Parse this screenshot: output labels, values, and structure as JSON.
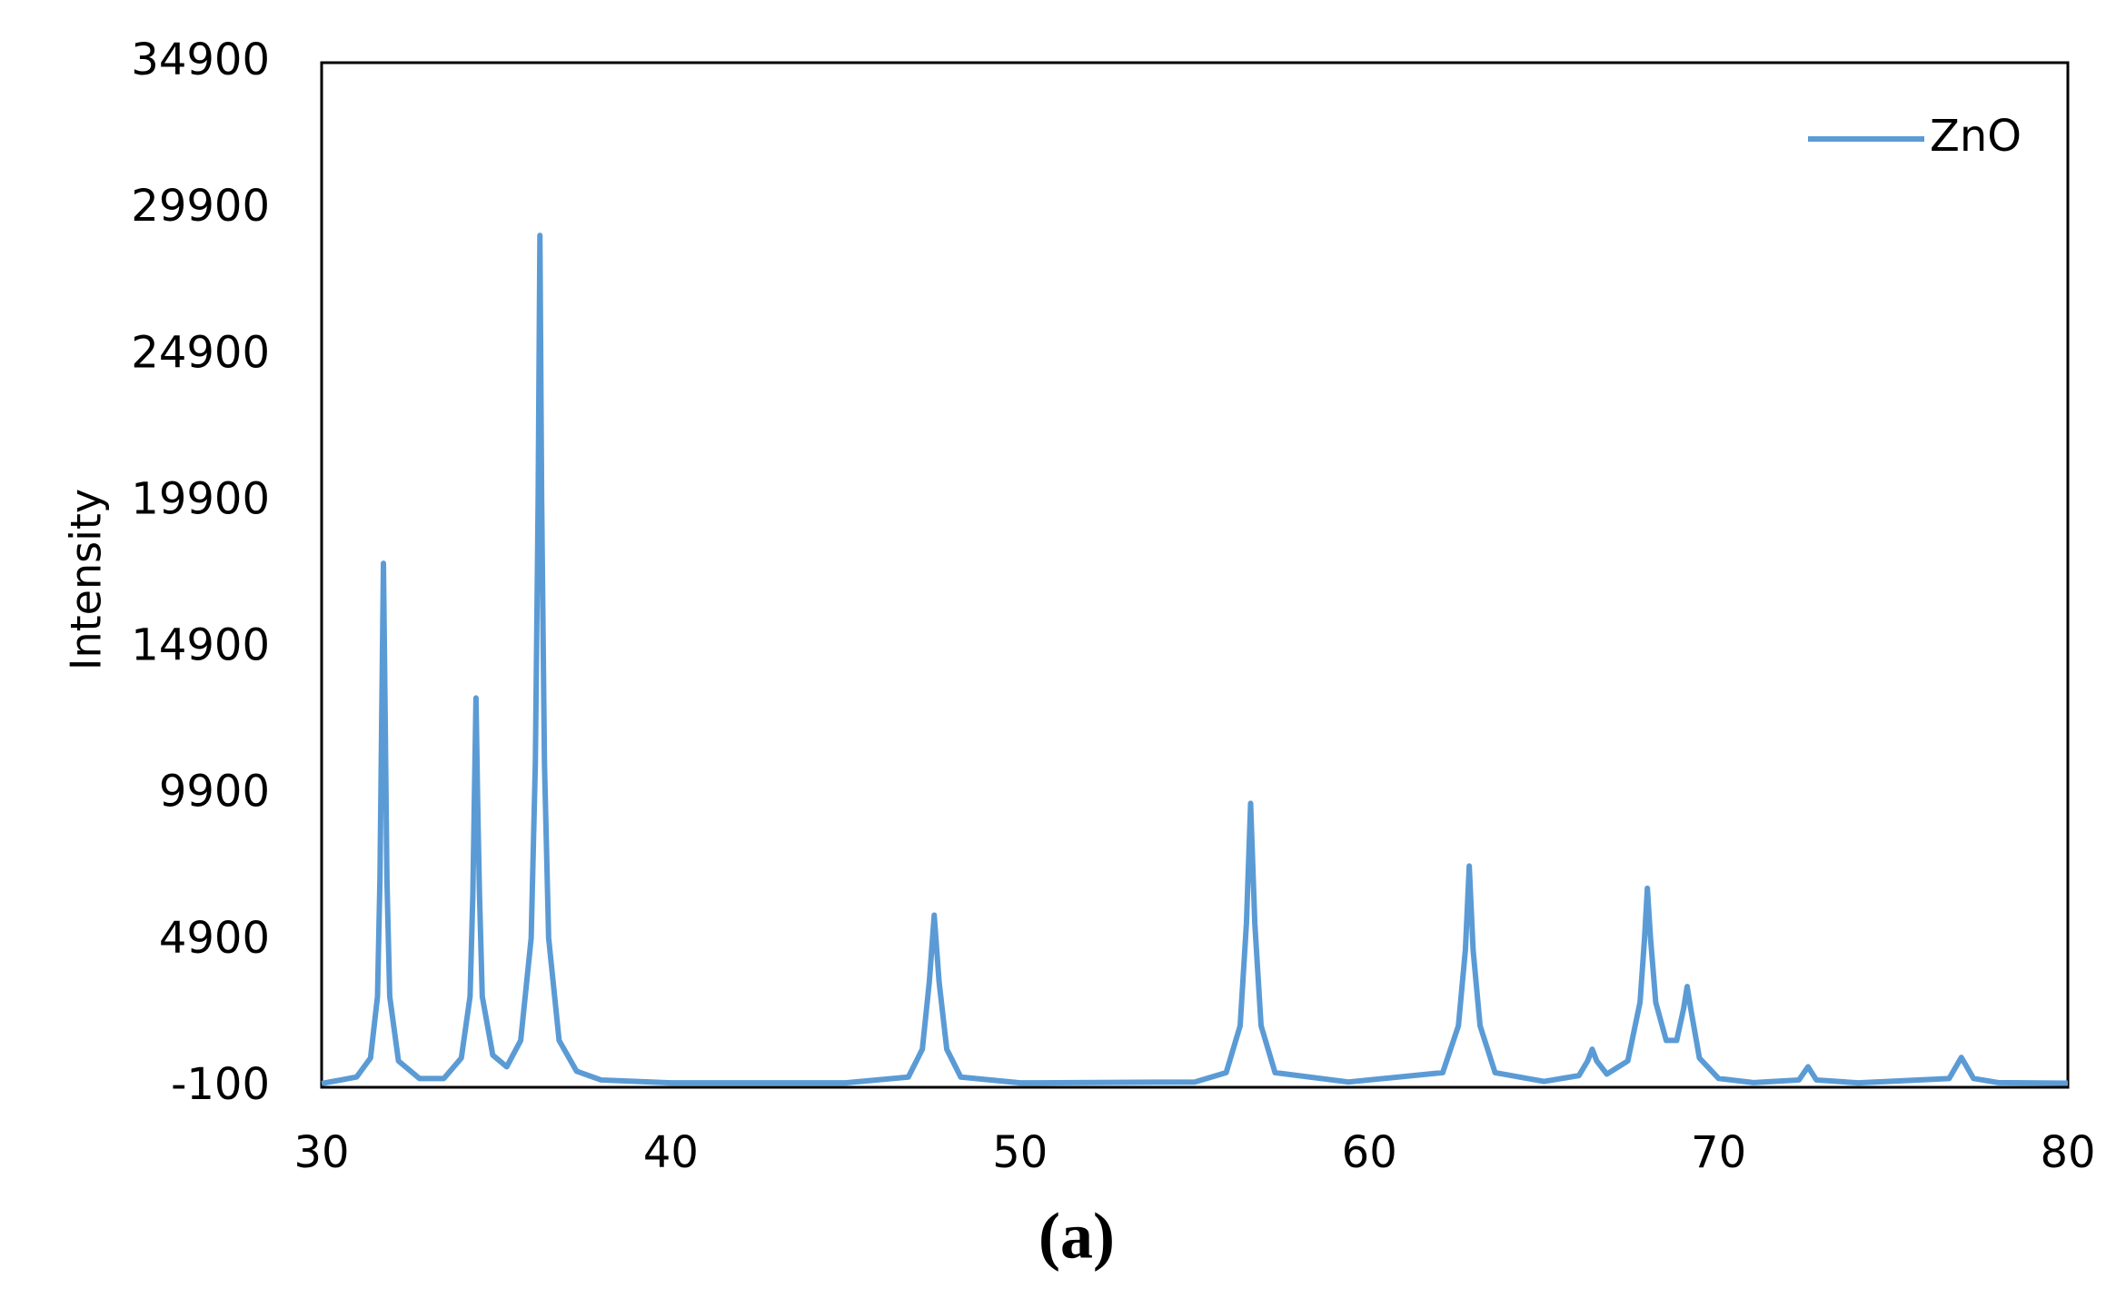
{
  "chart_data": {
    "type": "line",
    "y_label": "Intensity",
    "caption": "(a)",
    "x": [
      30,
      31.0,
      31.4,
      31.6,
      31.67,
      31.72,
      31.77,
      31.82,
      31.87,
      31.95,
      32.2,
      32.8,
      33.5,
      34.0,
      34.25,
      34.33,
      34.37,
      34.42,
      34.47,
      34.52,
      34.6,
      34.9,
      35.3,
      35.7,
      36.0,
      36.12,
      36.2,
      36.25,
      36.3,
      36.38,
      36.5,
      36.8,
      37.3,
      38,
      40,
      45,
      46.8,
      47.2,
      47.4,
      47.54,
      47.68,
      47.9,
      48.3,
      50,
      55,
      55.9,
      56.3,
      56.48,
      56.6,
      56.72,
      56.9,
      57.3,
      59.4,
      62.1,
      62.55,
      62.75,
      62.86,
      62.97,
      63.17,
      63.6,
      65,
      66.0,
      66.25,
      66.38,
      66.51,
      66.8,
      67.4,
      67.75,
      67.88,
      67.96,
      68.05,
      68.2,
      68.5,
      68.8,
      69.0,
      69.1,
      69.2,
      69.45,
      70,
      71,
      72.3,
      72.56,
      72.8,
      74,
      76.6,
      76.95,
      77.3,
      78,
      80
    ],
    "series": [
      {
        "name": "ZnO",
        "color": "#5b9bd5",
        "values": [
          30,
          250,
          900,
          3000,
          7000,
          12500,
          17800,
          12500,
          7000,
          3000,
          800,
          200,
          200,
          900,
          3000,
          6500,
          9500,
          13200,
          9500,
          6500,
          3000,
          1000,
          600,
          1500,
          5000,
          11000,
          20000,
          29000,
          20000,
          11000,
          5000,
          1500,
          450,
          150,
          50,
          50,
          250,
          1200,
          3500,
          5780,
          3500,
          1200,
          250,
          50,
          80,
          400,
          2000,
          5500,
          9600,
          5500,
          2000,
          400,
          80,
          400,
          2000,
          4600,
          7460,
          4600,
          2000,
          400,
          100,
          300,
          800,
          1200,
          800,
          350,
          800,
          2800,
          5000,
          6700,
          5000,
          2800,
          1500,
          1500,
          2600,
          3340,
          2600,
          900,
          200,
          60,
          150,
          600,
          150,
          50,
          200,
          920,
          200,
          60,
          40
        ]
      }
    ],
    "xlim": [
      30,
      80
    ],
    "xticks": [
      30,
      40,
      50,
      60,
      70,
      80
    ],
    "ylim": [
      -100,
      34900
    ],
    "yticks": [
      -100,
      4900,
      9900,
      14900,
      19900,
      24900,
      29900,
      34900
    ],
    "grid": false,
    "legend": "upper right"
  }
}
